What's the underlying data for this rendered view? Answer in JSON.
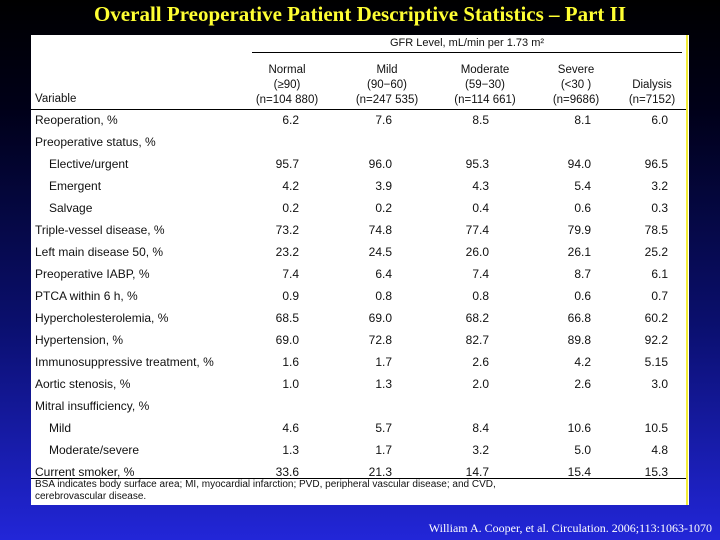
{
  "title": "Overall Preoperative Patient Descriptive Statistics – Part II",
  "table": {
    "group_header": "GFR Level, mL/min per 1.73 m²",
    "variable_header": "Variable",
    "columns": [
      {
        "name": "Normal",
        "range": "(≥90)",
        "n": "(n=104 880)"
      },
      {
        "name": "Mild",
        "range": "(90−60)",
        "n": "(n=247 535)"
      },
      {
        "name": "Moderate",
        "range": "(59−30)",
        "n": "(n=114 661)"
      },
      {
        "name": "Severe",
        "range": "(<30 )",
        "n": "(n=9686)"
      },
      {
        "name": "Dialysis",
        "range": "",
        "n": "(n=7152)"
      }
    ],
    "rows": [
      {
        "label": "Reoperation, %",
        "values": [
          "6.2",
          "7.6",
          "8.5",
          "8.1",
          "6.0"
        ]
      },
      {
        "label": "Preoperative status, %",
        "values": [
          "",
          "",
          "",
          "",
          ""
        ]
      },
      {
        "label": "Elective/urgent",
        "values": [
          "95.7",
          "96.0",
          "95.3",
          "94.0",
          "96.5"
        ]
      },
      {
        "label": "Emergent",
        "values": [
          "4.2",
          "3.9",
          "4.3",
          "5.4",
          "3.2"
        ]
      },
      {
        "label": "Salvage",
        "values": [
          "0.2",
          "0.2",
          "0.4",
          "0.6",
          "0.3"
        ]
      },
      {
        "label": "Triple-vessel disease, %",
        "values": [
          "73.2",
          "74.8",
          "77.4",
          "79.9",
          "78.5"
        ]
      },
      {
        "label": "Left main disease 50, %",
        "values": [
          "23.2",
          "24.5",
          "26.0",
          "26.1",
          "25.2"
        ]
      },
      {
        "label": "Preoperative IABP, %",
        "values": [
          "7.4",
          "6.4",
          "7.4",
          "8.7",
          "6.1"
        ]
      },
      {
        "label": "PTCA within 6 h, %",
        "values": [
          "0.9",
          "0.8",
          "0.8",
          "0.6",
          "0.7"
        ]
      },
      {
        "label": "Hypercholesterolemia, %",
        "values": [
          "68.5",
          "69.0",
          "68.2",
          "66.8",
          "60.2"
        ]
      },
      {
        "label": "Hypertension, %",
        "values": [
          "69.0",
          "72.8",
          "82.7",
          "89.8",
          "92.2"
        ]
      },
      {
        "label": "Immunosuppressive treatment, %",
        "values": [
          "1.6",
          "1.7",
          "2.6",
          "4.2",
          "5.15"
        ]
      },
      {
        "label": "Aortic stenosis, %",
        "values": [
          "1.0",
          "1.3",
          "2.0",
          "2.6",
          "3.0"
        ]
      },
      {
        "label": "Mitral insufficiency, %",
        "values": [
          "",
          "",
          "",
          "",
          ""
        ]
      },
      {
        "label": "Mild",
        "values": [
          "4.6",
          "5.7",
          "8.4",
          "10.6",
          "10.5"
        ]
      },
      {
        "label": "Moderate/severe",
        "values": [
          "1.3",
          "1.7",
          "3.2",
          "5.0",
          "4.8"
        ]
      },
      {
        "label": "Current smoker, %",
        "values": [
          "33.6",
          "21.3",
          "14.7",
          "15.4",
          "15.3"
        ]
      }
    ],
    "footnote_line1": "BSA indicates body surface area; MI, myocardial infarction; PVD, peripheral vascular disease; and CVD,",
    "footnote_line2": "cerebrovascular disease."
  },
  "citation": "William A. Cooper, et al. Circulation. 2006;113:1063-1070",
  "colors": {
    "title": "#ffff33",
    "accent_line": "#f2ec38",
    "background_top": "#000000",
    "background_bottom": "#2226d8"
  }
}
